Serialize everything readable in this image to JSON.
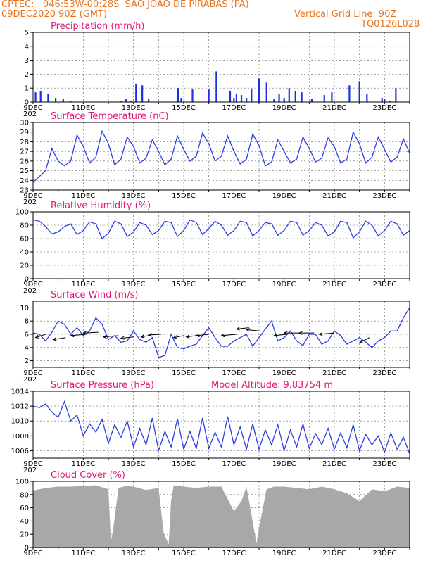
{
  "header": {
    "station": "CPTEC:   046:53W-00:28S  SAO JOAO DE PIRABAS (PA)",
    "run": "09DEC2020 90Z (GMT)",
    "grid_note": "Vertical Grid Line: 90Z",
    "model": "TQ0126L028"
  },
  "x_labels": [
    "9DEC",
    "11DEC",
    "13DEC",
    "15DEC",
    "17DEC",
    "19DEC",
    "21DEC",
    "23DEC"
  ],
  "x_sublabel": "202",
  "colors": {
    "title": "#e6147a",
    "header": "#e8731e",
    "line": "#2b3fe0",
    "bar": "#1f2fe0",
    "cloud": "#a8a8a8"
  },
  "chart_data": [
    {
      "name": "precip",
      "type": "bar",
      "title": "Precipitation (mm/h)",
      "ylim": [
        0,
        5
      ],
      "yticks": [
        0,
        1,
        2,
        3,
        4,
        5
      ],
      "x": [
        0.1,
        0.3,
        0.6,
        0.9,
        1.2,
        1.5,
        3.5,
        3.7,
        3.9,
        4.1,
        4.35,
        4.6,
        5.75,
        5.8,
        5.9,
        6.35,
        7.0,
        7.3,
        7.85,
        8.0,
        8.1,
        8.3,
        8.5,
        8.7,
        9.0,
        9.3,
        9.6,
        9.8,
        10.0,
        10.2,
        10.45,
        10.7,
        11.1,
        11.6,
        11.9,
        12.6,
        13.0,
        13.3,
        13.9,
        14.0,
        14.2,
        14.45
      ],
      "values": [
        0.7,
        0.8,
        0.6,
        0.3,
        0.2,
        0.1,
        0.1,
        0.2,
        0.1,
        1.3,
        1.2,
        0.2,
        1.0,
        1.0,
        0.3,
        0.9,
        0.9,
        2.2,
        0.8,
        0.3,
        0.6,
        0.5,
        0.3,
        0.9,
        1.7,
        1.4,
        0.2,
        0.6,
        0.3,
        1.0,
        0.8,
        0.7,
        0.2,
        0.5,
        0.7,
        1.2,
        1.5,
        0.6,
        0.3,
        0.2,
        0.1,
        1.0
      ],
      "xlim": [
        0,
        15
      ]
    },
    {
      "name": "temp",
      "type": "line",
      "title": "Surface Temperature (nC)",
      "ylim": [
        23,
        30
      ],
      "yticks": [
        23,
        24,
        25,
        26,
        27,
        28,
        29,
        30
      ],
      "x": [
        0,
        0.25,
        0.5,
        0.75,
        1.0,
        1.25,
        1.5,
        1.75,
        2.0,
        2.25,
        2.5,
        2.75,
        3.0,
        3.25,
        3.5,
        3.75,
        4.0,
        4.25,
        4.5,
        4.75,
        5.0,
        5.25,
        5.5,
        5.75,
        6.0,
        6.25,
        6.5,
        6.75,
        7.0,
        7.25,
        7.5,
        7.75,
        8.0,
        8.25,
        8.5,
        8.75,
        9.0,
        9.25,
        9.5,
        9.75,
        10.0,
        10.25,
        10.5,
        10.75,
        11.0,
        11.25,
        11.5,
        11.75,
        12.0,
        12.25,
        12.5,
        12.75,
        13.0,
        13.25,
        13.5,
        13.75,
        14.0,
        14.25,
        14.5,
        14.75,
        15.0
      ],
      "values": [
        23.8,
        24.4,
        25.0,
        27.3,
        26.0,
        25.5,
        26.0,
        28.7,
        27.5,
        25.8,
        26.4,
        29.1,
        27.8,
        25.6,
        26.2,
        28.5,
        27.5,
        25.8,
        26.3,
        28.2,
        27.0,
        25.6,
        26.2,
        28.6,
        27.2,
        26.0,
        26.5,
        28.9,
        27.8,
        26.0,
        26.5,
        28.6,
        27.0,
        25.7,
        26.2,
        28.8,
        27.6,
        25.5,
        25.9,
        28.2,
        27.0,
        25.8,
        26.2,
        28.5,
        27.3,
        25.9,
        26.3,
        28.4,
        27.5,
        25.8,
        26.2,
        29.0,
        27.8,
        25.8,
        26.4,
        28.5,
        27.2,
        25.9,
        26.4,
        28.3,
        26.8
      ],
      "xlim": [
        0,
        15
      ]
    },
    {
      "name": "rh",
      "type": "line",
      "title": "Relative Humidity (%)",
      "ylim": [
        0,
        100
      ],
      "yticks": [
        0,
        20,
        40,
        60,
        80,
        100
      ],
      "x": [
        0,
        0.25,
        0.5,
        0.75,
        1.0,
        1.25,
        1.5,
        1.75,
        2.0,
        2.25,
        2.5,
        2.75,
        3.0,
        3.25,
        3.5,
        3.75,
        4.0,
        4.25,
        4.5,
        4.75,
        5.0,
        5.25,
        5.5,
        5.75,
        6.0,
        6.25,
        6.5,
        6.75,
        7.0,
        7.25,
        7.5,
        7.75,
        8.0,
        8.25,
        8.5,
        8.75,
        9.0,
        9.25,
        9.5,
        9.75,
        10.0,
        10.25,
        10.5,
        10.75,
        11.0,
        11.25,
        11.5,
        11.75,
        12.0,
        12.25,
        12.5,
        12.75,
        13.0,
        13.25,
        13.5,
        13.75,
        14.0,
        14.25,
        14.5,
        14.75,
        15.0
      ],
      "values": [
        88,
        86,
        78,
        67,
        70,
        78,
        82,
        66,
        72,
        85,
        82,
        60,
        68,
        86,
        82,
        63,
        70,
        84,
        80,
        66,
        72,
        86,
        84,
        63,
        72,
        88,
        84,
        66,
        75,
        86,
        80,
        65,
        72,
        86,
        84,
        64,
        72,
        84,
        82,
        65,
        72,
        86,
        84,
        65,
        72,
        84,
        80,
        64,
        70,
        86,
        84,
        61,
        70,
        86,
        80,
        64,
        72,
        86,
        82,
        65,
        72
      ],
      "xlim": [
        0,
        15
      ]
    },
    {
      "name": "wind",
      "type": "line",
      "title": "Surface Wind (m/s)",
      "ylim": [
        1,
        11
      ],
      "yticks": [
        2,
        4,
        6,
        8,
        10
      ],
      "x": [
        0,
        0.25,
        0.5,
        0.75,
        1.0,
        1.25,
        1.5,
        1.75,
        2.0,
        2.25,
        2.5,
        2.75,
        3.0,
        3.25,
        3.5,
        3.75,
        4.0,
        4.25,
        4.5,
        4.75,
        5.0,
        5.25,
        5.5,
        5.75,
        6.0,
        6.25,
        6.5,
        6.75,
        7.0,
        7.25,
        7.5,
        7.75,
        8.0,
        8.25,
        8.5,
        8.75,
        9.0,
        9.25,
        9.5,
        9.75,
        10.0,
        10.25,
        10.5,
        10.75,
        11.0,
        11.25,
        11.5,
        11.75,
        12.0,
        12.25,
        12.5,
        12.75,
        13.0,
        13.25,
        13.5,
        13.75,
        14.0,
        14.25,
        14.5,
        14.75,
        15.0
      ],
      "values": [
        6.2,
        6.0,
        5.0,
        6.3,
        8.0,
        7.5,
        6.0,
        7.0,
        5.8,
        6.5,
        8.5,
        7.5,
        5.2,
        5.8,
        4.8,
        5.0,
        6.5,
        5.2,
        4.8,
        5.5,
        2.5,
        2.8,
        6.0,
        4.0,
        3.8,
        4.2,
        4.5,
        5.8,
        7.0,
        5.5,
        4.2,
        4.2,
        5.0,
        5.5,
        6.0,
        4.2,
        5.5,
        6.8,
        8.0,
        5.0,
        5.5,
        6.5,
        5.0,
        4.3,
        6.0,
        6.0,
        4.5,
        5.0,
        6.5,
        5.8,
        4.5,
        5.0,
        5.5,
        4.8,
        4.0,
        5.0,
        5.5,
        6.5,
        6.5,
        8.5,
        10.0
      ],
      "xlim": [
        0,
        15
      ],
      "vectors": [
        {
          "x": 0.5,
          "y": 6.0,
          "dx": -0.4,
          "dy": -0.5
        },
        {
          "x": 1.3,
          "y": 5.5,
          "dx": -0.5,
          "dy": -0.3
        },
        {
          "x": 2.1,
          "y": 6.0,
          "dx": -0.6,
          "dy": -0.2
        },
        {
          "x": 2.6,
          "y": 6.3,
          "dx": -0.6,
          "dy": -0.1
        },
        {
          "x": 3.4,
          "y": 5.8,
          "dx": -0.6,
          "dy": -0.2
        },
        {
          "x": 4.0,
          "y": 5.6,
          "dx": -0.5,
          "dy": -0.2
        },
        {
          "x": 4.6,
          "y": 5.8,
          "dx": -0.3,
          "dy": -0.2
        },
        {
          "x": 5.1,
          "y": 6.0,
          "dx": -0.5,
          "dy": -0.1
        },
        {
          "x": 6.0,
          "y": 5.8,
          "dx": -0.4,
          "dy": -0.3
        },
        {
          "x": 6.5,
          "y": 5.8,
          "dx": -0.4,
          "dy": -0.2
        },
        {
          "x": 7.0,
          "y": 6.0,
          "dx": -0.5,
          "dy": -0.2
        },
        {
          "x": 8.1,
          "y": 6.0,
          "dx": -0.6,
          "dy": -0.2
        },
        {
          "x": 8.6,
          "y": 7.0,
          "dx": -0.5,
          "dy": -0.2
        },
        {
          "x": 9.0,
          "y": 6.5,
          "dx": -0.5,
          "dy": 0.2
        },
        {
          "x": 10.1,
          "y": 6.0,
          "dx": -0.5,
          "dy": -0.2
        },
        {
          "x": 10.6,
          "y": 6.2,
          "dx": -0.6,
          "dy": 0.0
        },
        {
          "x": 11.2,
          "y": 6.2,
          "dx": -0.6,
          "dy": 0.0
        },
        {
          "x": 12.0,
          "y": 6.2,
          "dx": -0.6,
          "dy": -0.2
        },
        {
          "x": 13.4,
          "y": 5.5,
          "dx": -0.4,
          "dy": -0.8
        }
      ]
    },
    {
      "name": "pressure",
      "type": "line",
      "title": "Surface Pressure (hPa)",
      "annotation": "Model Altitude: 9.83754 m",
      "ylim": [
        1005,
        1014
      ],
      "yticks": [
        1006,
        1008,
        1010,
        1012,
        1014
      ],
      "x": [
        0,
        0.25,
        0.5,
        0.75,
        1.0,
        1.25,
        1.5,
        1.75,
        2.0,
        2.25,
        2.5,
        2.75,
        3.0,
        3.25,
        3.5,
        3.75,
        4.0,
        4.25,
        4.5,
        4.75,
        5.0,
        5.25,
        5.5,
        5.75,
        6.0,
        6.25,
        6.5,
        6.75,
        7.0,
        7.25,
        7.5,
        7.75,
        8.0,
        8.25,
        8.5,
        8.75,
        9.0,
        9.25,
        9.5,
        9.75,
        10.0,
        10.25,
        10.5,
        10.75,
        11.0,
        11.25,
        11.5,
        11.75,
        12.0,
        12.25,
        12.5,
        12.75,
        13.0,
        13.25,
        13.5,
        13.75,
        14.0,
        14.25,
        14.5,
        14.75,
        15.0
      ],
      "values": [
        1012.0,
        1011.8,
        1012.3,
        1011.2,
        1010.5,
        1012.6,
        1010.0,
        1010.8,
        1008.0,
        1009.6,
        1008.5,
        1010.2,
        1007.0,
        1009.5,
        1007.8,
        1010.0,
        1006.5,
        1009.0,
        1006.8,
        1010.4,
        1006.0,
        1008.6,
        1006.5,
        1010.3,
        1006.2,
        1008.6,
        1006.3,
        1010.4,
        1006.3,
        1008.5,
        1006.5,
        1010.6,
        1006.8,
        1009.2,
        1006.2,
        1009.6,
        1006.2,
        1008.8,
        1006.8,
        1009.5,
        1006.0,
        1008.8,
        1006.5,
        1009.6,
        1006.3,
        1008.3,
        1006.8,
        1009.0,
        1006.2,
        1008.4,
        1006.4,
        1009.5,
        1006.0,
        1008.2,
        1006.8,
        1008.0,
        1005.8,
        1008.4,
        1006.2,
        1007.8,
        1005.6
      ],
      "xlim": [
        0,
        15
      ]
    },
    {
      "name": "cloud",
      "type": "area",
      "title": "Cloud Cover (%)",
      "ylim": [
        0,
        100
      ],
      "yticks": [
        0,
        20,
        40,
        60,
        80,
        100
      ],
      "x": [
        0,
        0.5,
        1.0,
        1.5,
        2.0,
        2.5,
        3.0,
        3.1,
        3.2,
        3.4,
        3.7,
        4.0,
        4.5,
        5.0,
        5.2,
        5.4,
        5.5,
        5.6,
        6.0,
        6.5,
        7.0,
        7.5,
        8.0,
        8.3,
        8.5,
        8.9,
        9.0,
        9.3,
        9.6,
        10.0,
        10.5,
        11.0,
        11.5,
        12.0,
        12.5,
        13.0,
        13.5,
        14.0,
        14.5,
        15.0
      ],
      "values": [
        86,
        90,
        92,
        92,
        93,
        94,
        88,
        9,
        30,
        90,
        93,
        92,
        87,
        90,
        22,
        5,
        72,
        94,
        92,
        90,
        92,
        92,
        55,
        70,
        92,
        6,
        30,
        88,
        92,
        92,
        90,
        88,
        92,
        88,
        82,
        70,
        88,
        85,
        92,
        90
      ],
      "xlim": [
        0,
        15
      ]
    }
  ]
}
